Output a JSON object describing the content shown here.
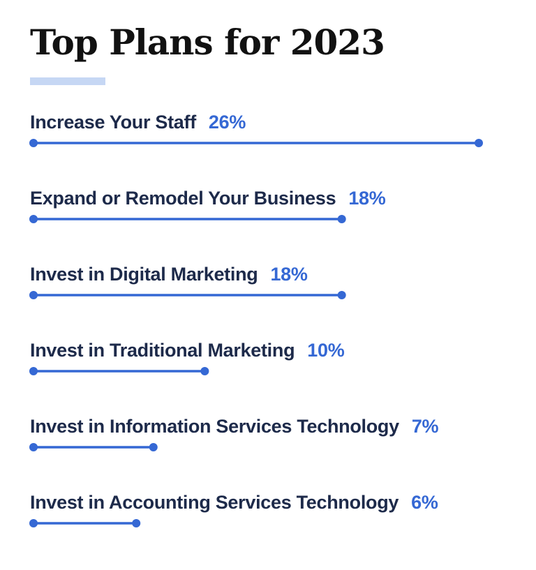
{
  "chart_data": {
    "type": "bar",
    "title": "Top Plans for 2023",
    "categories": [
      "Increase Your Staff",
      "Expand or Remodel Your Business",
      "Invest in Digital Marketing",
      "Invest in Traditional Marketing",
      "Invest in Information Services Technology",
      "Invest in Accounting Services Technology"
    ],
    "values": [
      26,
      18,
      18,
      10,
      7,
      6
    ],
    "value_labels": [
      "26%",
      "18%",
      "18%",
      "10%",
      "7%",
      "6%"
    ],
    "unit": "%",
    "xlim": [
      0,
      26
    ],
    "grid": false,
    "legend": "none",
    "orientation": "horizontal"
  },
  "colors": {
    "bar": "#3568d4",
    "label": "#1d2a4a",
    "value": "#3568d4",
    "accent_rule": "#c6d7f4",
    "title": "#111111"
  }
}
